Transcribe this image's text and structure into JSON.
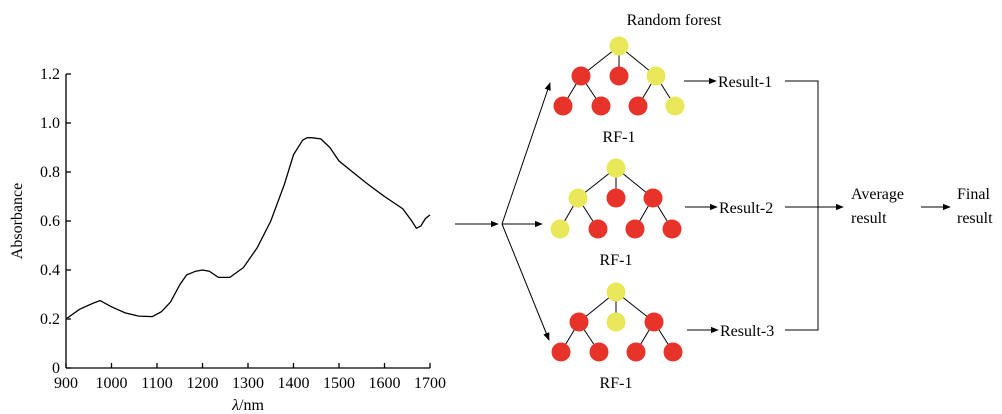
{
  "chart_data": {
    "type": "line",
    "xlabel_symbol": "λ",
    "xlabel_unit": "/nm",
    "ylabel": "Absorbance",
    "xlim": [
      900,
      1700
    ],
    "ylim": [
      0,
      1.2
    ],
    "x_ticks": [
      "900",
      "1000",
      "1100",
      "1200",
      "1300",
      "1400",
      "1500",
      "1600",
      "1700"
    ],
    "y_ticks": [
      "0",
      "0.2",
      "0.4",
      "0.6",
      "0.8",
      "1.0",
      "1.2"
    ],
    "series": [
      {
        "x": [
          900,
          930,
          960,
          975,
          1000,
          1030,
          1060,
          1090,
          1110,
          1130,
          1150,
          1165,
          1185,
          1200,
          1215,
          1235,
          1260,
          1290,
          1320,
          1350,
          1380,
          1400,
          1420,
          1430,
          1440,
          1460,
          1480,
          1500,
          1530,
          1560,
          1600,
          1640,
          1660,
          1670,
          1680,
          1690,
          1700
        ],
        "y": [
          0.2,
          0.24,
          0.265,
          0.275,
          0.25,
          0.225,
          0.212,
          0.21,
          0.23,
          0.27,
          0.34,
          0.38,
          0.395,
          0.4,
          0.395,
          0.37,
          0.37,
          0.41,
          0.49,
          0.6,
          0.75,
          0.87,
          0.93,
          0.94,
          0.94,
          0.935,
          0.9,
          0.845,
          0.8,
          0.755,
          0.7,
          0.65,
          0.6,
          0.57,
          0.58,
          0.61,
          0.625
        ]
      }
    ]
  },
  "diagram": {
    "title": "Random forest",
    "trees": [
      {
        "caption": "RF-1",
        "result": "Result-1"
      },
      {
        "caption": "RF-1",
        "result": "Result-2"
      },
      {
        "caption": "RF-1",
        "result": "Result-3"
      }
    ],
    "average_line1": "Average",
    "average_line2": "result",
    "final_line1": "Final",
    "final_line2": "result",
    "colors": {
      "node_red": "#e8332a",
      "node_yellow": "#e8e85a"
    }
  }
}
